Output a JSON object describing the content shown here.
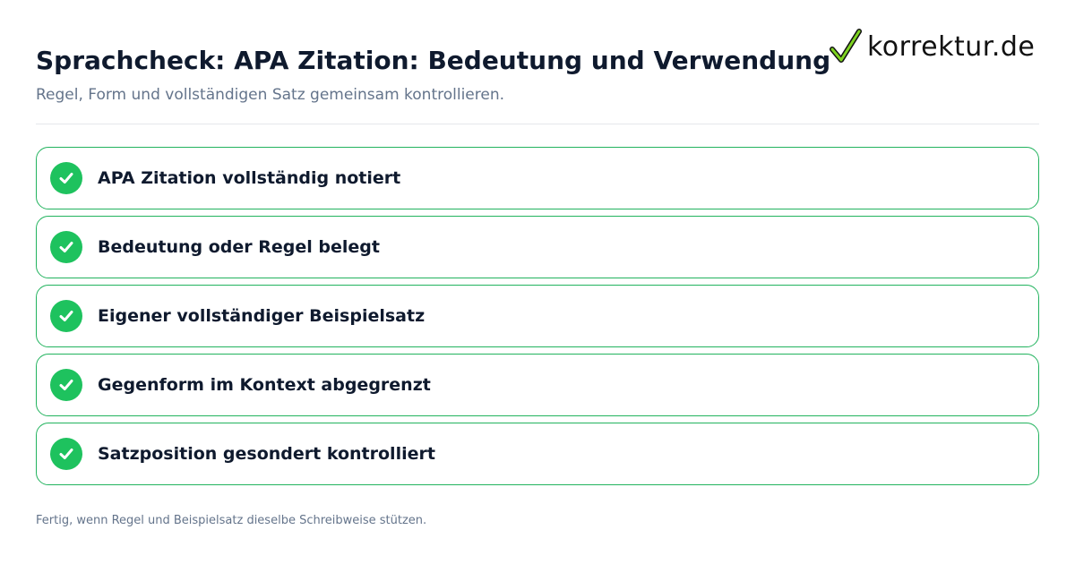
{
  "header": {
    "title": "Sprachcheck: APA Zitation: Bedeutung und Verwendung",
    "subtitle": "Regel, Form und vollständigen Satz gemeinsam kontrollieren."
  },
  "logo": {
    "text": "korrektur.de",
    "icon": "checkmark-icon",
    "icon_color": "#111111",
    "icon_accent": "#7ed321"
  },
  "checklist": {
    "items": [
      {
        "label": "APA Zitation vollständig notiert",
        "checked": true
      },
      {
        "label": "Bedeutung oder Regel belegt",
        "checked": true
      },
      {
        "label": "Eigener vollständiger Beispielsatz",
        "checked": true
      },
      {
        "label": "Gegenform im Kontext abgegrenzt",
        "checked": true
      },
      {
        "label": "Satzposition gesondert kontrolliert",
        "checked": true
      }
    ]
  },
  "footer": {
    "text": "Fertig, wenn Regel und Beispielsatz dieselbe Schreibweise stützen."
  },
  "colors": {
    "accent_green": "#1ec25e",
    "border_green": "#22b35e",
    "title": "#0f1a2e",
    "muted": "#64748b"
  }
}
